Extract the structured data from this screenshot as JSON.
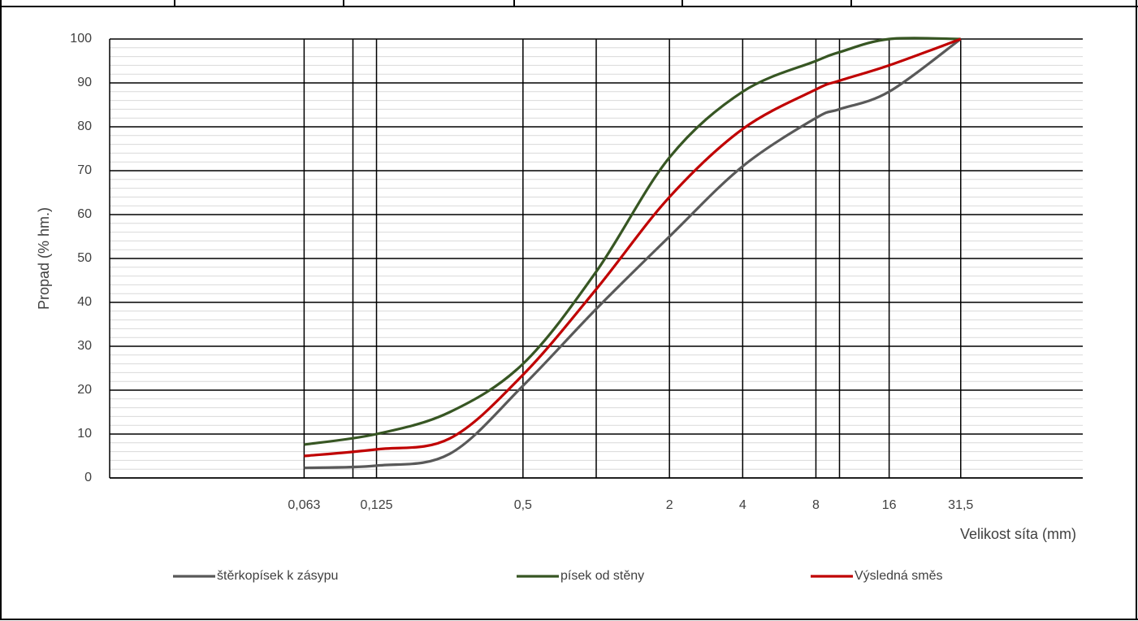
{
  "chart_data": {
    "type": "line",
    "xlabel": "Velikost síta (mm)",
    "ylabel": "Propad (% hm.)",
    "xscale": "log",
    "xlim": [
      0.01,
      100
    ],
    "ylim": [
      0,
      100
    ],
    "xticks": [
      {
        "value": 0.063,
        "label": "0,063"
      },
      {
        "value": 0.125,
        "label": "0,125"
      },
      {
        "value": 0.5,
        "label": "0,5"
      },
      2,
      4,
      8,
      16,
      {
        "value": 31.5,
        "label": "31,5"
      }
    ],
    "minor_xgrid": [
      0.1,
      1,
      10
    ],
    "yticks": [
      0,
      10,
      20,
      30,
      40,
      50,
      60,
      70,
      80,
      90,
      100
    ],
    "minor_yticks": [
      2,
      4,
      6,
      8,
      12,
      14,
      16,
      18,
      22,
      24,
      26,
      28,
      32,
      34,
      36,
      38,
      42,
      44,
      46,
      48,
      52,
      54,
      56,
      58,
      62,
      64,
      66,
      68,
      72,
      74,
      76,
      78,
      82,
      84,
      86,
      88,
      92,
      94,
      96,
      98
    ],
    "grid": true,
    "legend": "bottom",
    "x": [
      0.063,
      0.125,
      0.25,
      0.5,
      1,
      2,
      4,
      8,
      10,
      16,
      31.5
    ],
    "series": [
      {
        "name": "štěrkopísek k zásypu",
        "color": "#595959",
        "values": [
          2.3,
          2.8,
          5.5,
          21,
          38.5,
          55,
          71,
          82,
          84,
          88,
          100
        ]
      },
      {
        "name": "písek od stěny",
        "color": "#375623",
        "values": [
          7.6,
          10,
          15,
          26,
          47,
          73,
          88,
          95,
          97,
          100,
          100
        ]
      },
      {
        "name": "Výsledná směs",
        "color": "#c00000",
        "values": [
          5,
          6.5,
          9,
          23.5,
          43,
          64,
          79.5,
          88.5,
          90.5,
          94,
          100
        ]
      }
    ]
  }
}
